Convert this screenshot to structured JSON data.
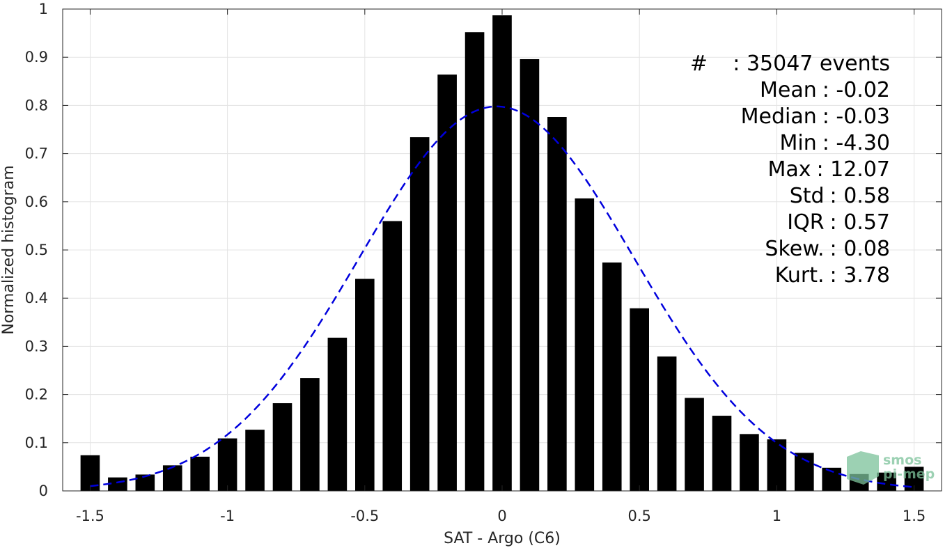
{
  "chart_data": {
    "type": "bar",
    "xlabel": "SAT - Argo (C6)",
    "ylabel": "Normalized histogram",
    "xlim": [
      -1.6,
      1.6
    ],
    "ylim": [
      0,
      1
    ],
    "xticks": [
      -1.5,
      -1,
      -0.5,
      0,
      0.5,
      1,
      1.5
    ],
    "xtick_labels": [
      "-1.5",
      "-1",
      "-0.5",
      "0",
      "0.5",
      "1",
      "1.5"
    ],
    "yticks": [
      0,
      0.1,
      0.2,
      0.3,
      0.4,
      0.5,
      0.6,
      0.7,
      0.8,
      0.9,
      1
    ],
    "ytick_labels": [
      "0",
      "0.1",
      "0.2",
      "0.3",
      "0.4",
      "0.5",
      "0.6",
      "0.7",
      "0.8",
      "0.9",
      "1"
    ],
    "grid": true,
    "bar_color": "#000000",
    "bar_width": 0.07,
    "bins": [
      -1.5,
      -1.4,
      -1.3,
      -1.2,
      -1.1,
      -1.0,
      -0.9,
      -0.8,
      -0.7,
      -0.6,
      -0.5,
      -0.4,
      -0.3,
      -0.2,
      -0.1,
      0.0,
      0.1,
      0.2,
      0.3,
      0.4,
      0.5,
      0.6,
      0.7,
      0.8,
      0.9,
      1.0,
      1.1,
      1.2,
      1.3,
      1.4,
      1.5
    ],
    "values": [
      0.074,
      0.028,
      0.034,
      0.053,
      0.071,
      0.109,
      0.127,
      0.182,
      0.234,
      0.318,
      0.44,
      0.56,
      0.734,
      0.864,
      0.952,
      0.987,
      0.896,
      0.776,
      0.607,
      0.474,
      0.379,
      0.279,
      0.193,
      0.156,
      0.118,
      0.107,
      0.079,
      0.048,
      0.035,
      0.038,
      0.05
    ],
    "fit": {
      "type": "gaussian",
      "color": "#0000dd",
      "style": "dashed",
      "mean": -0.02,
      "std": 0.5,
      "x_range": [
        -1.5,
        1.5
      ]
    },
    "stats": [
      {
        "key": "#",
        "sep": " : ",
        "value": "35047 events"
      },
      {
        "key": "Mean",
        "sep": " : ",
        "value": "-0.02"
      },
      {
        "key": "Median",
        "sep": " : ",
        "value": "-0.03"
      },
      {
        "key": "Min",
        "sep": " : ",
        "value": "-4.30"
      },
      {
        "key": "Max",
        "sep": " : ",
        "value": "12.07"
      },
      {
        "key": "Std",
        "sep": " : ",
        "value": "0.58"
      },
      {
        "key": "IQR",
        "sep": " : ",
        "value": "0.57"
      },
      {
        "key": "Skew.",
        "sep": " : ",
        "value": "0.08"
      },
      {
        "key": "Kurt.",
        "sep": " : ",
        "value": "3.78"
      }
    ]
  },
  "logo": {
    "line1": "smos",
    "line2": "pi-mep",
    "color": "#7cc29a"
  }
}
